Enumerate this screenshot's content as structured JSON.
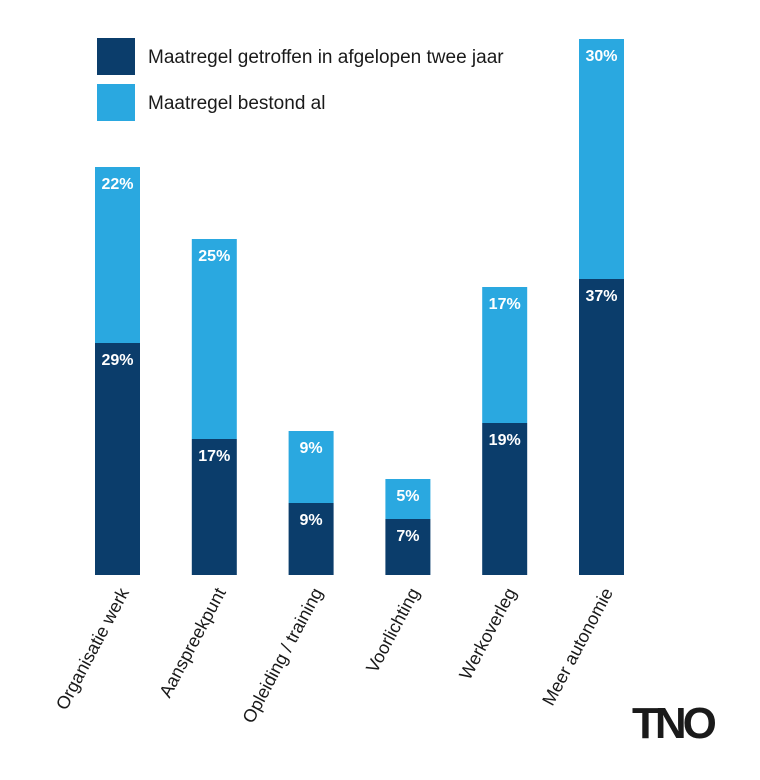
{
  "chart_data": {
    "type": "bar",
    "stacked": true,
    "categories": [
      "Organisatie werk",
      "Aanspreekpunt",
      "Opleiding / training",
      "Voorlichting",
      "Werkoverleg",
      "Meer autonomie"
    ],
    "series": [
      {
        "name": "Maatregel getroffen in afgelopen twee jaar",
        "color": "#0b3d6b",
        "values": [
          29,
          17,
          9,
          7,
          19,
          37
        ]
      },
      {
        "name": "Maatregel bestond al",
        "color": "#2aa8e0",
        "values": [
          22,
          25,
          9,
          5,
          17,
          30
        ]
      }
    ],
    "unit": "%",
    "legend": "top-left",
    "grid": false,
    "ylim": [
      0,
      70
    ]
  },
  "logo": "TNO"
}
